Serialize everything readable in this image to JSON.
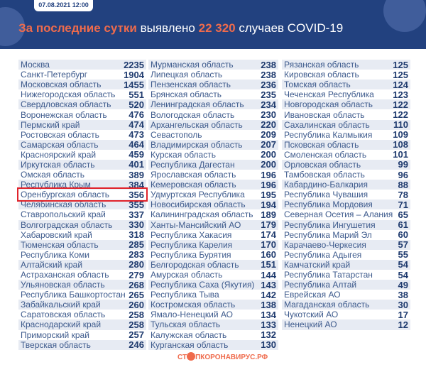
{
  "header": {
    "date": "07.08.2021 12:00",
    "headline_accent": "За последние сутки",
    "headline_mid": " выявлено ",
    "headline_count": "22 320",
    "headline_end": " случаев COVID-19"
  },
  "highlight": "Оренбургская область",
  "columns": [
    [
      [
        "Москва",
        "2235"
      ],
      [
        "Санкт-Петербург",
        "1904"
      ],
      [
        "Московская область",
        "1455"
      ],
      [
        "Нижегородская область",
        "551"
      ],
      [
        "Свердловская область",
        "520"
      ],
      [
        "Воронежская область",
        "476"
      ],
      [
        "Пермский край",
        "474"
      ],
      [
        "Ростовская область",
        "473"
      ],
      [
        "Самарская область",
        "464"
      ],
      [
        "Красноярский край",
        "459"
      ],
      [
        "Иркутская область",
        "401"
      ],
      [
        "Омская область",
        "389"
      ],
      [
        "Республика Крым",
        "384"
      ],
      [
        "Оренбургская область",
        "356"
      ],
      [
        "Челябинская область",
        "355"
      ],
      [
        "Ставропольский край",
        "337"
      ],
      [
        "Волгоградская область",
        "330"
      ],
      [
        "Хабаровский край",
        "318"
      ],
      [
        "Тюменская область",
        "285"
      ],
      [
        "Республика Коми",
        "283"
      ],
      [
        "Алтайский край",
        "280"
      ],
      [
        "Астраханская область",
        "279"
      ],
      [
        "Ульяновская область",
        "268"
      ],
      [
        "Республика Башкортостан",
        "265"
      ],
      [
        "Забайкальский край",
        "260"
      ],
      [
        "Саратовская область",
        "258"
      ],
      [
        "Краснодарский край",
        "258"
      ],
      [
        "Приморский край",
        "257"
      ],
      [
        "Тверская область",
        "246"
      ]
    ],
    [
      [
        "Мурманская область",
        "238"
      ],
      [
        "Липецкая область",
        "238"
      ],
      [
        "Пензенская область",
        "236"
      ],
      [
        "Брянская область",
        "235"
      ],
      [
        "Ленинградская область",
        "234"
      ],
      [
        "Вологодская область",
        "230"
      ],
      [
        "Архангельская область",
        "220"
      ],
      [
        "Севастополь",
        "209"
      ],
      [
        "Владимирская область",
        "207"
      ],
      [
        "Курская область",
        "200"
      ],
      [
        "Республика Дагестан",
        "200"
      ],
      [
        "Ярославская область",
        "196"
      ],
      [
        "Кемеровская область",
        "196"
      ],
      [
        "Удмуртская Республика",
        "195"
      ],
      [
        "Новосибирская область",
        "194"
      ],
      [
        "Калининградская область",
        "189"
      ],
      [
        "Ханты-Мансийский АО",
        "179"
      ],
      [
        "Республика Хакасия",
        "174"
      ],
      [
        "Республика Карелия",
        "170"
      ],
      [
        "Республика Бурятия",
        "160"
      ],
      [
        "Белгородская область",
        "151"
      ],
      [
        "Амурская область",
        "144"
      ],
      [
        "Республика Саха (Якутия)",
        "143"
      ],
      [
        "Республика Тыва",
        "142"
      ],
      [
        "Костромская область",
        "138"
      ],
      [
        "Ямало-Ненецкий АО",
        "134"
      ],
      [
        "Тульская область",
        "133"
      ],
      [
        "Калужская область",
        "132"
      ],
      [
        "Курганская область",
        "130"
      ]
    ],
    [
      [
        "Рязанская область",
        "125"
      ],
      [
        "Кировская область",
        "125"
      ],
      [
        "Томская область",
        "124"
      ],
      [
        "Чеченская Республика",
        "123"
      ],
      [
        "Новгородская область",
        "122"
      ],
      [
        "Ивановская область",
        "122"
      ],
      [
        "Сахалинская область",
        "110"
      ],
      [
        "Республика Калмыкия",
        "109"
      ],
      [
        "Псковская область",
        "108"
      ],
      [
        "Смоленская область",
        "101"
      ],
      [
        "Орловская область",
        "99"
      ],
      [
        "Тамбовская область",
        "96"
      ],
      [
        "Кабардино-Балкария",
        "88"
      ],
      [
        "Республика Чувашия",
        "78"
      ],
      [
        "Республика Мордовия",
        "71"
      ],
      [
        "Северная Осетия – Алания",
        "65"
      ],
      [
        "Республика Ингушетия",
        "61"
      ],
      [
        "Республика Марий Эл",
        "60"
      ],
      [
        "Карачаево-Черкесия",
        "57"
      ],
      [
        "Республика Адыгея",
        "55"
      ],
      [
        "Камчатский край",
        "54"
      ],
      [
        "Республика Татарстан",
        "54"
      ],
      [
        "Республика Алтай",
        "49"
      ],
      [
        "Еврейская АО",
        "38"
      ],
      [
        "Магаданская область",
        "30"
      ],
      [
        "Чукотский АО",
        "17"
      ],
      [
        "Ненецкий АО",
        "12"
      ]
    ]
  ],
  "footer": {
    "logo_left": "СТ",
    "logo_right": "ПКОРОНАВИРУС.РФ"
  },
  "colors": {
    "header_bg": "#22417f",
    "accent": "#ef6b4c",
    "number": "#1e3a6e",
    "highlight": "#e0232b"
  }
}
